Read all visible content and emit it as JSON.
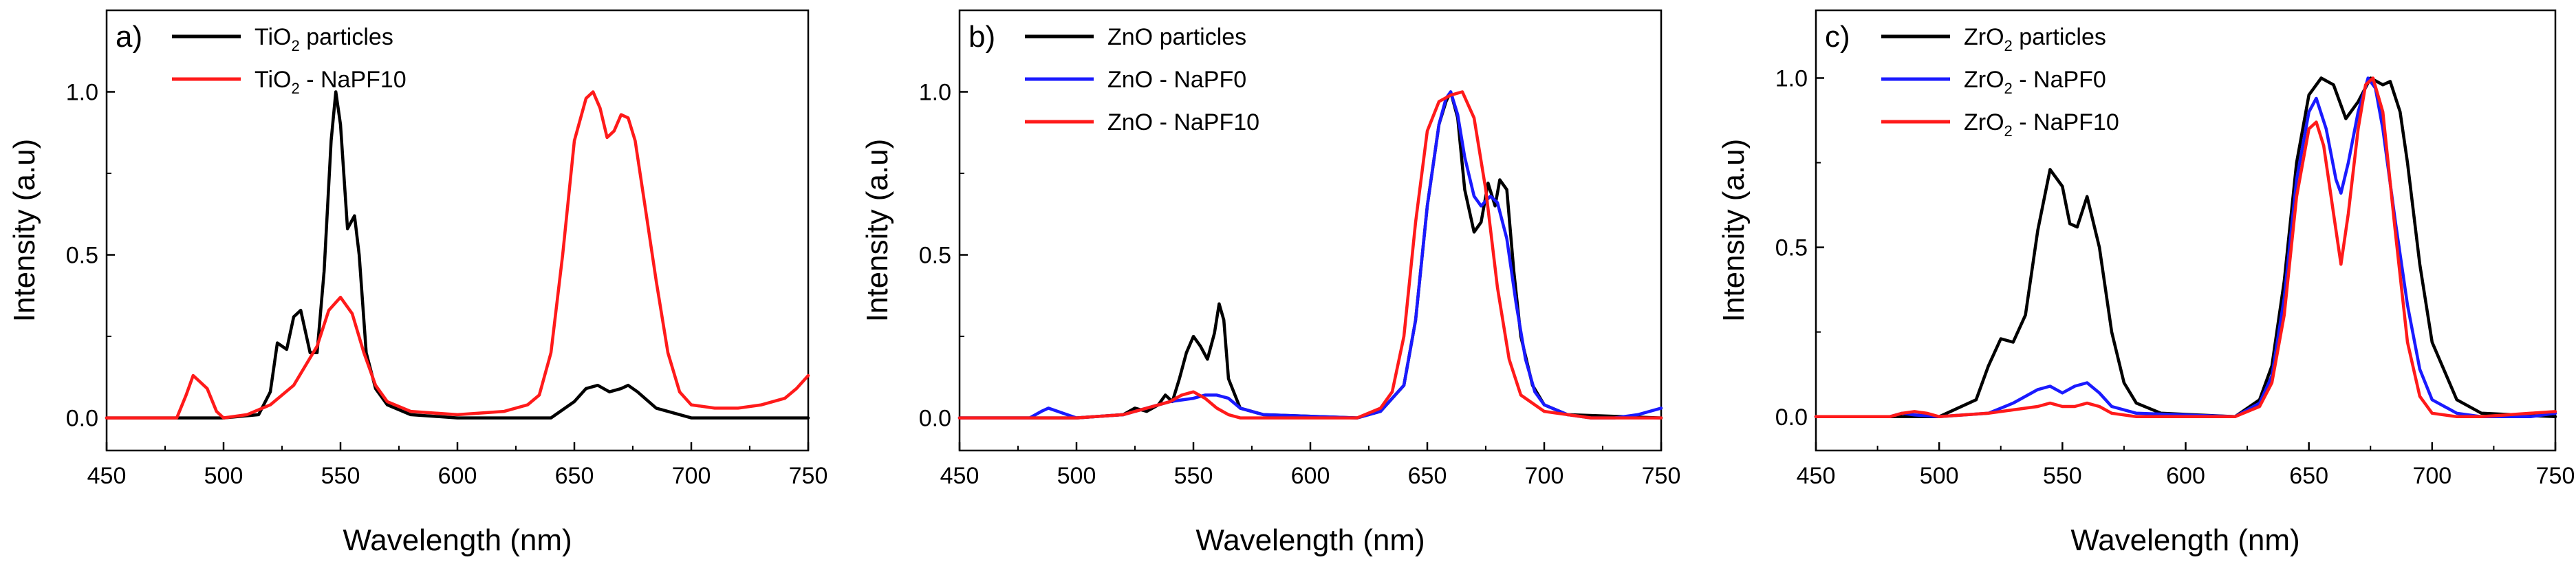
{
  "colors": {
    "black": "#000000",
    "blue": "#1a1aff",
    "red": "#ff1a1a"
  },
  "chart_data": [
    {
      "type": "line",
      "panel_label": "a)",
      "xlabel": "Wavelength (nm)",
      "ylabel": "Intensity (a.u)",
      "xlim": [
        450,
        750
      ],
      "ylim": [
        -0.1,
        1.25
      ],
      "xticks": [
        450,
        500,
        550,
        600,
        650,
        700,
        750
      ],
      "xtick_labels": [
        "450",
        "500",
        "550",
        "600",
        "650",
        "700",
        "750"
      ],
      "yticks": [
        0.0,
        0.5,
        1.0
      ],
      "ytick_labels": [
        "0.0",
        "0.5",
        "1.0"
      ],
      "legend_placement": "top-left",
      "series": [
        {
          "name": "TiO2 particles",
          "legend_main": "TiO",
          "legend_sub": "2",
          "legend_rest": " particles",
          "color_key": "black",
          "x": [
            450,
            500,
            515,
            520,
            523,
            527,
            530,
            533,
            537,
            540,
            543,
            546,
            548,
            550,
            553,
            556,
            558,
            561,
            565,
            570,
            580,
            600,
            640,
            650,
            655,
            660,
            665,
            670,
            673,
            677,
            685,
            700,
            750
          ],
          "y": [
            0.0,
            0.0,
            0.01,
            0.08,
            0.23,
            0.21,
            0.31,
            0.33,
            0.2,
            0.2,
            0.45,
            0.85,
            1.0,
            0.9,
            0.58,
            0.62,
            0.5,
            0.2,
            0.09,
            0.04,
            0.01,
            0.0,
            0.0,
            0.05,
            0.09,
            0.1,
            0.08,
            0.09,
            0.1,
            0.08,
            0.03,
            0.0,
            0.0
          ]
        },
        {
          "name": "TiO2 - NaPF10",
          "legend_main": "TiO",
          "legend_sub": "2",
          "legend_rest": " - NaPF10",
          "color_key": "red",
          "x": [
            450,
            480,
            484,
            487,
            490,
            493,
            497,
            500,
            510,
            520,
            530,
            540,
            545,
            550,
            555,
            560,
            565,
            570,
            580,
            600,
            620,
            630,
            635,
            640,
            645,
            650,
            655,
            658,
            661,
            664,
            667,
            670,
            673,
            676,
            680,
            685,
            690,
            695,
            700,
            710,
            720,
            730,
            740,
            745,
            750
          ],
          "y": [
            0.0,
            0.0,
            0.07,
            0.13,
            0.11,
            0.09,
            0.02,
            0.0,
            0.01,
            0.04,
            0.1,
            0.22,
            0.33,
            0.37,
            0.32,
            0.2,
            0.1,
            0.05,
            0.02,
            0.01,
            0.02,
            0.04,
            0.07,
            0.2,
            0.5,
            0.85,
            0.98,
            1.0,
            0.95,
            0.86,
            0.88,
            0.93,
            0.92,
            0.85,
            0.66,
            0.42,
            0.2,
            0.08,
            0.04,
            0.03,
            0.03,
            0.04,
            0.06,
            0.09,
            0.13
          ]
        }
      ]
    },
    {
      "type": "line",
      "panel_label": "b)",
      "xlabel": "Wavelength (nm)",
      "ylabel": "Intensity (a.u)",
      "xlim": [
        450,
        750
      ],
      "ylim": [
        -0.1,
        1.25
      ],
      "xticks": [
        450,
        500,
        550,
        600,
        650,
        700,
        750
      ],
      "xtick_labels": [
        "450",
        "500",
        "550",
        "600",
        "650",
        "700",
        "750"
      ],
      "yticks": [
        0.0,
        0.5,
        1.0
      ],
      "ytick_labels": [
        "0.0",
        "0.5",
        "1.0"
      ],
      "legend_placement": "top-left",
      "series": [
        {
          "name": "ZnO particles",
          "legend_main": "ZnO particles",
          "legend_sub": "",
          "legend_rest": "",
          "color_key": "black",
          "x": [
            450,
            500,
            520,
            525,
            530,
            535,
            538,
            541,
            544,
            547,
            550,
            553,
            556,
            559,
            561,
            563,
            565,
            570,
            580,
            620,
            630,
            640,
            645,
            650,
            655,
            658,
            660,
            663,
            666,
            670,
            673,
            676,
            679,
            681,
            684,
            687,
            690,
            695,
            700,
            710,
            750
          ],
          "y": [
            0.0,
            0.0,
            0.01,
            0.03,
            0.02,
            0.04,
            0.07,
            0.05,
            0.12,
            0.2,
            0.25,
            0.22,
            0.18,
            0.26,
            0.35,
            0.3,
            0.12,
            0.03,
            0.01,
            0.0,
            0.02,
            0.1,
            0.3,
            0.65,
            0.9,
            0.97,
            1.0,
            0.92,
            0.7,
            0.57,
            0.6,
            0.72,
            0.65,
            0.73,
            0.7,
            0.45,
            0.25,
            0.1,
            0.04,
            0.01,
            0.0
          ]
        },
        {
          "name": "ZnO - NaPF0",
          "legend_main": "ZnO - NaPF0",
          "legend_sub": "",
          "legend_rest": "",
          "color_key": "blue",
          "x": [
            450,
            480,
            485,
            488,
            492,
            500,
            520,
            530,
            540,
            550,
            555,
            560,
            565,
            570,
            580,
            620,
            630,
            640,
            645,
            650,
            655,
            658,
            660,
            663,
            666,
            670,
            673,
            677,
            680,
            684,
            688,
            692,
            696,
            700,
            710,
            720,
            730,
            740,
            750
          ],
          "y": [
            0.0,
            0.0,
            0.02,
            0.03,
            0.02,
            0.0,
            0.01,
            0.03,
            0.05,
            0.06,
            0.07,
            0.07,
            0.06,
            0.03,
            0.01,
            0.0,
            0.02,
            0.1,
            0.3,
            0.65,
            0.9,
            0.98,
            1.0,
            0.93,
            0.8,
            0.68,
            0.65,
            0.68,
            0.66,
            0.55,
            0.35,
            0.18,
            0.08,
            0.04,
            0.01,
            0.0,
            0.0,
            0.01,
            0.03
          ]
        },
        {
          "name": "ZnO - NaPF10",
          "legend_main": "ZnO - NaPF10",
          "legend_sub": "",
          "legend_rest": "",
          "color_key": "red",
          "x": [
            450,
            500,
            520,
            530,
            540,
            545,
            550,
            555,
            560,
            565,
            570,
            580,
            620,
            630,
            635,
            640,
            645,
            650,
            655,
            660,
            665,
            670,
            675,
            680,
            685,
            690,
            700,
            720,
            750
          ],
          "y": [
            0.0,
            0.0,
            0.01,
            0.03,
            0.05,
            0.07,
            0.08,
            0.06,
            0.03,
            0.01,
            0.0,
            0.0,
            0.0,
            0.03,
            0.08,
            0.25,
            0.6,
            0.88,
            0.97,
            0.99,
            1.0,
            0.92,
            0.7,
            0.4,
            0.18,
            0.07,
            0.02,
            0.0,
            0.0
          ]
        }
      ]
    },
    {
      "type": "line",
      "panel_label": "c)",
      "xlabel": "Wavelength (nm)",
      "ylabel": "Intensity (a.u)",
      "xlim": [
        450,
        750
      ],
      "ylim": [
        -0.1,
        1.2
      ],
      "xticks": [
        450,
        500,
        550,
        600,
        650,
        700,
        750
      ],
      "xtick_labels": [
        "450",
        "500",
        "550",
        "600",
        "650",
        "700",
        "750"
      ],
      "yticks": [
        0.0,
        0.5,
        1.0
      ],
      "ytick_labels": [
        "0.0",
        "0.5",
        "1.0"
      ],
      "legend_placement": "top-left",
      "series": [
        {
          "name": "ZrO2 particles",
          "legend_main": "ZrO",
          "legend_sub": "2",
          "legend_rest": " particles",
          "color_key": "black",
          "x": [
            450,
            500,
            515,
            520,
            525,
            530,
            535,
            540,
            545,
            550,
            553,
            556,
            560,
            565,
            570,
            575,
            580,
            590,
            620,
            630,
            635,
            640,
            645,
            650,
            655,
            660,
            665,
            670,
            675,
            680,
            683,
            687,
            690,
            695,
            700,
            710,
            720,
            750
          ],
          "y": [
            0.0,
            0.0,
            0.05,
            0.15,
            0.23,
            0.22,
            0.3,
            0.55,
            0.73,
            0.68,
            0.57,
            0.56,
            0.65,
            0.5,
            0.25,
            0.1,
            0.04,
            0.01,
            0.0,
            0.05,
            0.15,
            0.4,
            0.75,
            0.95,
            1.0,
            0.98,
            0.88,
            0.93,
            1.0,
            0.98,
            0.99,
            0.9,
            0.75,
            0.45,
            0.22,
            0.05,
            0.01,
            0.0
          ]
        },
        {
          "name": "ZrO2 - NaPF0",
          "legend_main": "ZrO",
          "legend_sub": "2",
          "legend_rest": " - NaPF0",
          "color_key": "blue",
          "x": [
            450,
            480,
            485,
            490,
            500,
            520,
            530,
            540,
            545,
            550,
            555,
            560,
            565,
            570,
            580,
            620,
            630,
            635,
            640,
            645,
            650,
            653,
            657,
            661,
            663,
            666,
            670,
            674,
            677,
            680,
            685,
            690,
            695,
            700,
            710,
            720,
            730,
            740,
            750
          ],
          "y": [
            0.0,
            0.0,
            0.01,
            0.005,
            0.0,
            0.01,
            0.04,
            0.08,
            0.09,
            0.07,
            0.09,
            0.1,
            0.07,
            0.03,
            0.01,
            0.0,
            0.04,
            0.12,
            0.35,
            0.7,
            0.9,
            0.94,
            0.85,
            0.7,
            0.66,
            0.75,
            0.9,
            1.0,
            0.97,
            0.85,
            0.58,
            0.33,
            0.14,
            0.05,
            0.01,
            0.0,
            0.0,
            0.0,
            0.01
          ]
        },
        {
          "name": "ZrO2 - NaPF10",
          "legend_main": "ZrO",
          "legend_sub": "2",
          "legend_rest": " - NaPF10",
          "color_key": "red",
          "x": [
            450,
            480,
            485,
            490,
            495,
            500,
            520,
            530,
            540,
            545,
            550,
            555,
            560,
            565,
            570,
            580,
            620,
            630,
            635,
            640,
            645,
            650,
            653,
            656,
            660,
            663,
            666,
            670,
            673,
            676,
            680,
            685,
            690,
            695,
            700,
            710,
            720,
            730,
            740,
            750
          ],
          "y": [
            0.0,
            0.0,
            0.01,
            0.015,
            0.01,
            0.0,
            0.01,
            0.02,
            0.03,
            0.04,
            0.03,
            0.03,
            0.04,
            0.03,
            0.01,
            0.0,
            0.0,
            0.03,
            0.1,
            0.3,
            0.65,
            0.85,
            0.87,
            0.8,
            0.6,
            0.45,
            0.6,
            0.85,
            0.98,
            1.0,
            0.9,
            0.55,
            0.22,
            0.06,
            0.01,
            0.0,
            0.0,
            0.005,
            0.01,
            0.015
          ]
        }
      ]
    }
  ]
}
